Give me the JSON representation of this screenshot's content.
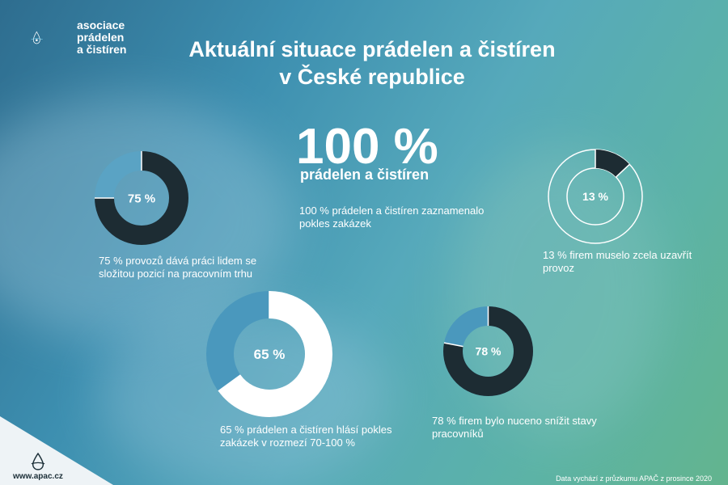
{
  "brand": {
    "name_lines": [
      "asociace",
      "prádelen",
      "a čistíren"
    ],
    "url": "www.apac.cz",
    "colors": {
      "dark": "#1d2c33",
      "light": "#ffffff",
      "accent": "#3d8fb0"
    }
  },
  "title_lines": [
    "Aktuální situace prádelen a čistíren",
    "v České republice"
  ],
  "headline": {
    "value_text": "100 %",
    "subtitle": "prádelen a čistíren",
    "description": "100 % prádelen a čistíren zaznamenalo pokles zakázek"
  },
  "source_note": "Data vychází z průzkumu APAČ z prosince 2020",
  "chart_data": [
    {
      "type": "pie",
      "value": 75,
      "label": "75 %",
      "description": "75 % provozů dává práci lidem se složitou pozicí na pracovním trhu",
      "fill_color": "#1d2c33"
    },
    {
      "type": "pie",
      "value": 13,
      "label": "13 %",
      "description": "13 % firem muselo zcela uzavřít provoz",
      "fill_color": "#1d2c33"
    },
    {
      "type": "pie",
      "value": 65,
      "label": "65 %",
      "description": "65 % prádelen a čistíren hlásí pokles zakázek v rozmezí 70-100 %",
      "fill_color": "#ffffff"
    },
    {
      "type": "pie",
      "value": 78,
      "label": "78 %",
      "description": "78 % firem bylo nuceno snížit stavy pracovníků",
      "fill_color": "#1d2c33"
    }
  ]
}
